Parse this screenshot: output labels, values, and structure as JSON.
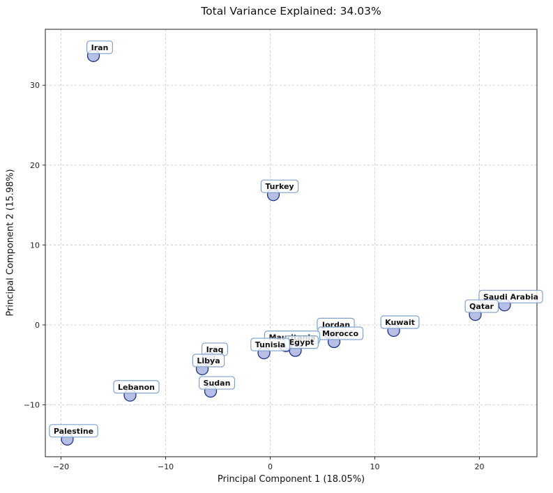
{
  "chart_data": {
    "type": "scatter",
    "title": "Total Variance Explained: 34.03%",
    "xlabel": "Principal Component 1 (18.05%)",
    "ylabel": "Principal Component 2 (15.98%)",
    "xlim": [
      -21.5,
      25.5
    ],
    "ylim": [
      -16.5,
      37
    ],
    "xticks": [
      -20,
      -10,
      0,
      10,
      20
    ],
    "yticks": [
      -10,
      0,
      10,
      20,
      30
    ],
    "grid": true,
    "legend": "none",
    "marker_fill": "#a9b4e2",
    "marker_edge": "#22307f",
    "label_box_border": "#7fa0cf",
    "label_box_fill": "#ffffff",
    "points": [
      {
        "label": "Iran",
        "x": -16.9,
        "y": 33.7
      },
      {
        "label": "Turkey",
        "x": 0.3,
        "y": 16.3
      },
      {
        "label": "Saudi Arabia",
        "x": 22.4,
        "y": 2.5
      },
      {
        "label": "Qatar",
        "x": 19.6,
        "y": 1.3
      },
      {
        "label": "Kuwait",
        "x": 11.8,
        "y": -0.7
      },
      {
        "label": "Jordan",
        "x": 5.7,
        "y": -1.0
      },
      {
        "label": "Morocco",
        "x": 6.1,
        "y": -2.1
      },
      {
        "label": "Mauritania",
        "x": 1.5,
        "y": -2.6
      },
      {
        "label": "Egypt",
        "x": 2.4,
        "y": -3.2
      },
      {
        "label": "Tunisia",
        "x": -0.6,
        "y": -3.5
      },
      {
        "label": "Iraq",
        "x": -5.9,
        "y": -4.1
      },
      {
        "label": "Libya",
        "x": -6.5,
        "y": -5.5
      },
      {
        "label": "Sudan",
        "x": -5.7,
        "y": -8.3
      },
      {
        "label": "Lebanon",
        "x": -13.4,
        "y": -8.8
      },
      {
        "label": "Palestine",
        "x": -19.4,
        "y": -14.3
      }
    ]
  }
}
